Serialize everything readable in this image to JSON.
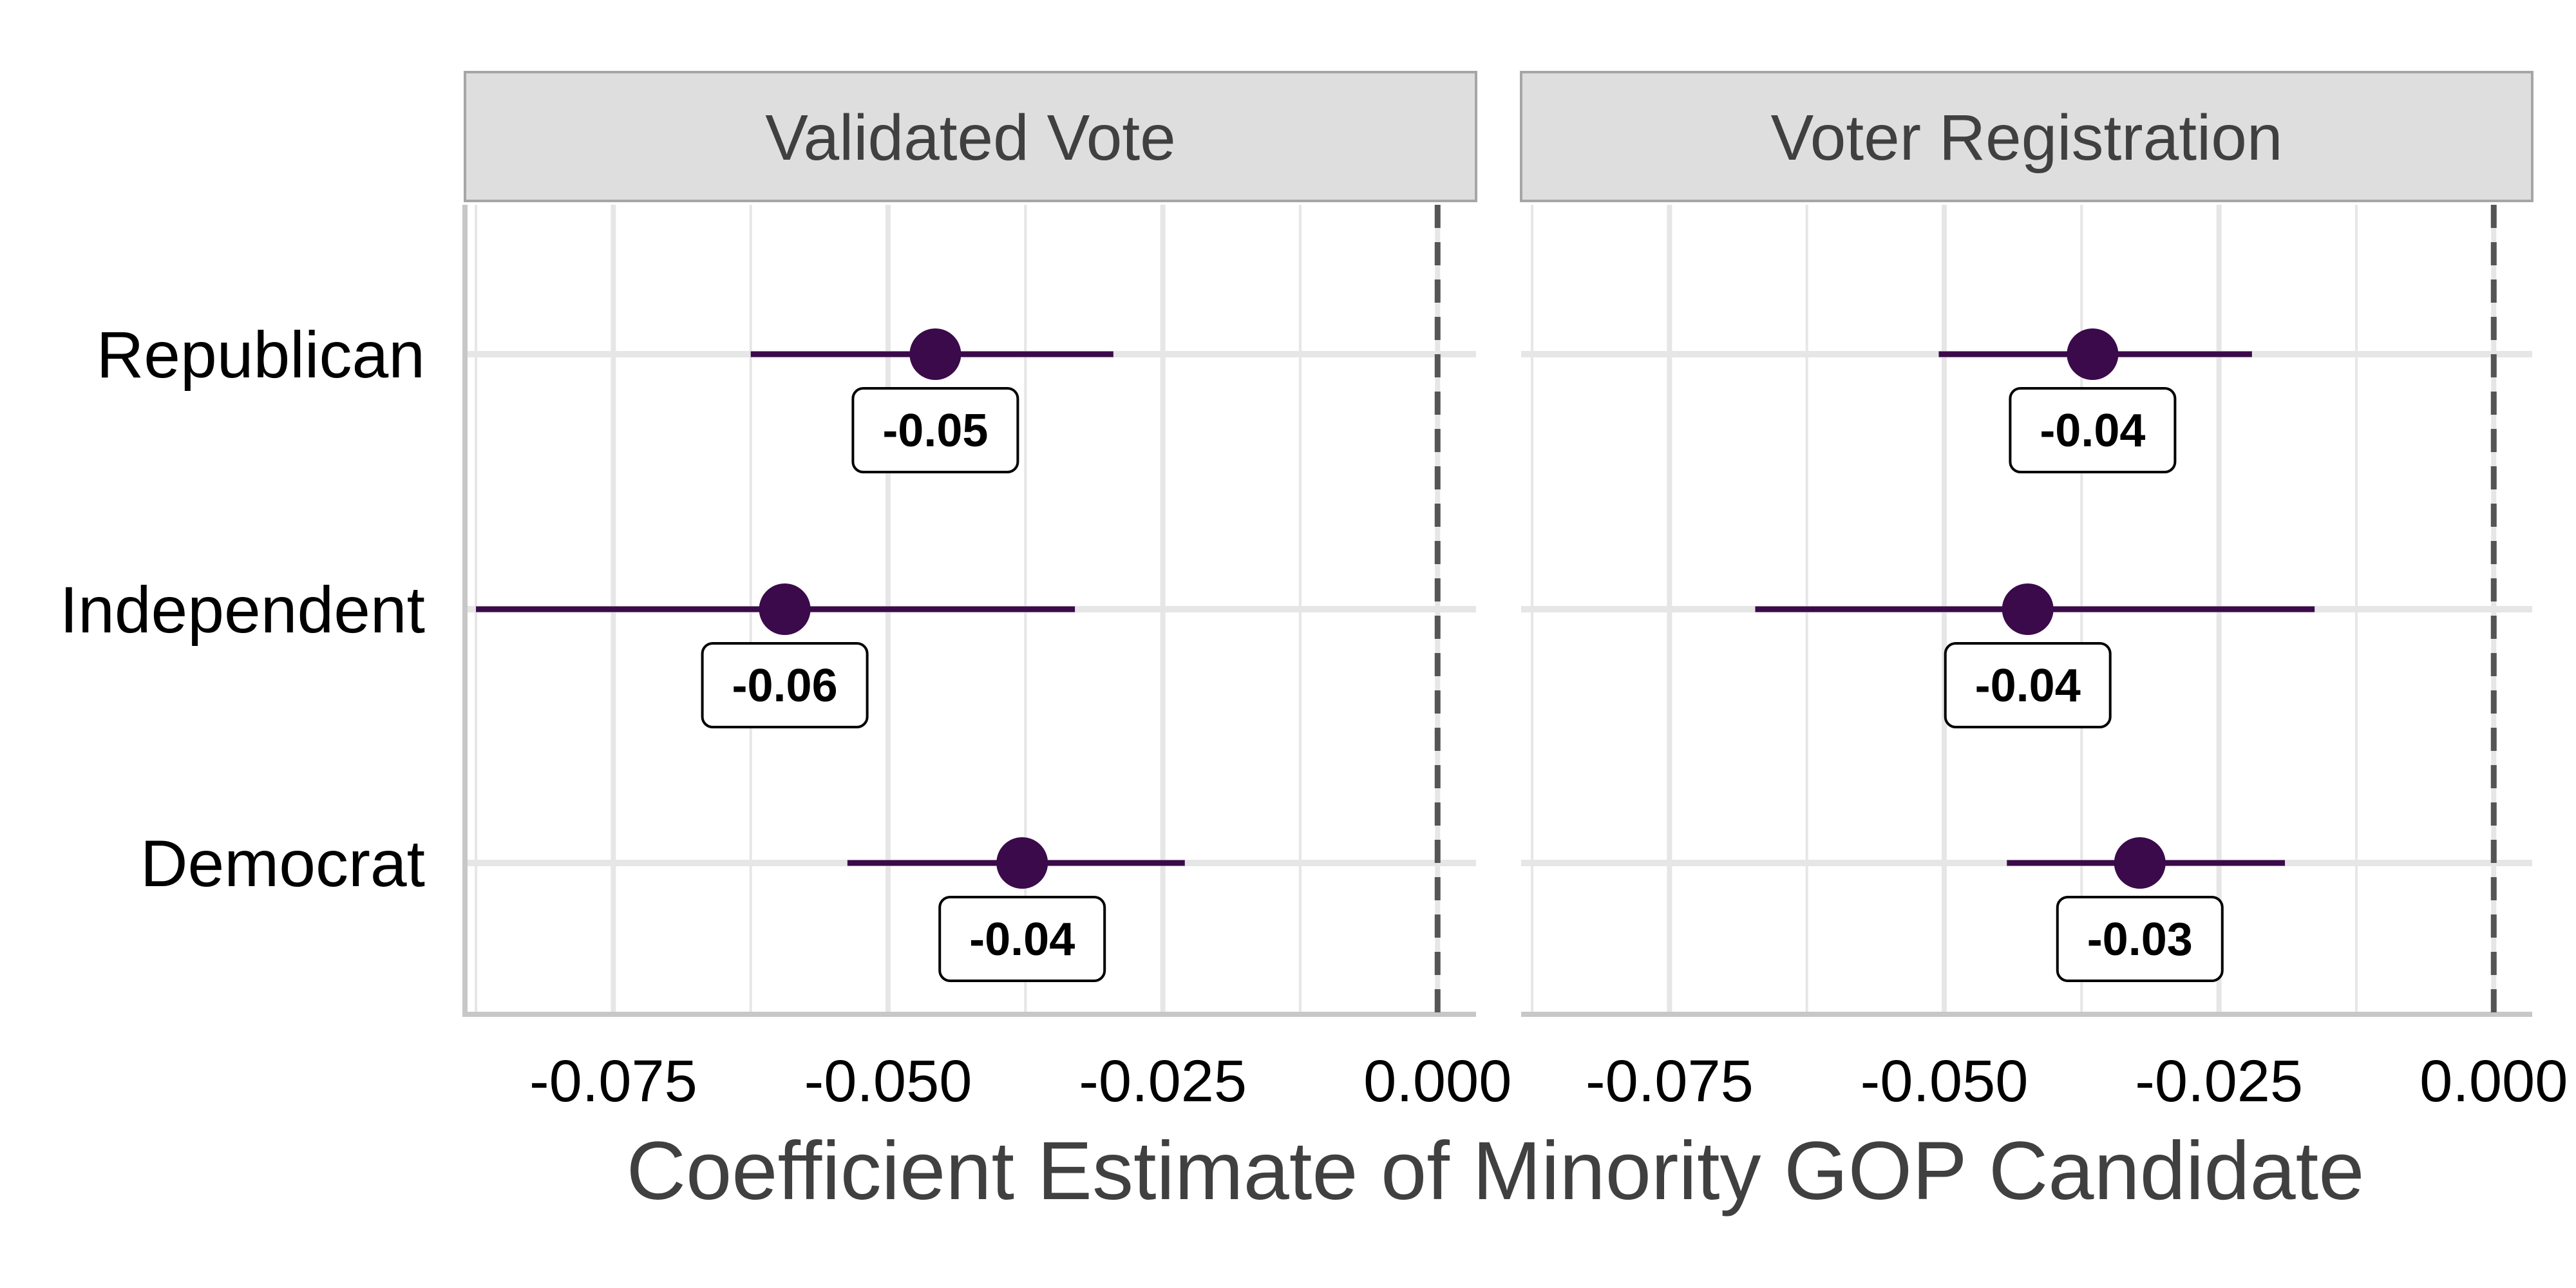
{
  "chart_data": {
    "type": "dot-and-whisker",
    "xlabel": "Coefficient Estimate of Minority GOP Candidate",
    "categories": [
      "Republican",
      "Independent",
      "Democrat"
    ],
    "xticks": [
      "-0.075",
      "-0.050",
      "-0.025",
      "0.000"
    ],
    "xlim": [
      -0.0885,
      0.0035
    ],
    "reference_line": 0,
    "grid": true,
    "colors": {
      "point": "#3b0a4a",
      "reference_line": "#555555",
      "strip_fill": "#dedede",
      "strip_border": "#a6a6a6",
      "grid": "#e6e6e6",
      "axis": "#c7c7c7"
    },
    "panels": [
      {
        "title": "Validated Vote",
        "points": [
          {
            "group": "Republican",
            "estimate": -0.0457,
            "lower": -0.0625,
            "upper": -0.0295,
            "label": "-0.05"
          },
          {
            "group": "Independent",
            "estimate": -0.0594,
            "lower": -0.0875,
            "upper": -0.033,
            "label": "-0.06"
          },
          {
            "group": "Democrat",
            "estimate": -0.0378,
            "lower": -0.0537,
            "upper": -0.023,
            "label": "-0.04"
          }
        ]
      },
      {
        "title": "Voter Registration",
        "points": [
          {
            "group": "Republican",
            "estimate": -0.0365,
            "lower": -0.0505,
            "upper": -0.022,
            "label": "-0.04"
          },
          {
            "group": "Independent",
            "estimate": -0.0424,
            "lower": -0.0672,
            "upper": -0.0163,
            "label": "-0.04"
          },
          {
            "group": "Democrat",
            "estimate": -0.0322,
            "lower": -0.0443,
            "upper": -0.019,
            "label": "-0.03"
          }
        ]
      }
    ]
  }
}
